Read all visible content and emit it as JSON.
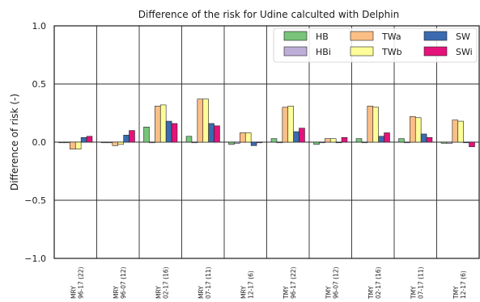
{
  "chart_data": {
    "type": "bar",
    "title": "Difference of the risk for Udine calculted with Delphin",
    "xlabel": "",
    "ylabel": "Difference of risk (-)",
    "ylim": [
      -1.0,
      1.0
    ],
    "yticks": [
      "−1.0",
      "−0.5",
      "0.0",
      "0.5",
      "1.0"
    ],
    "grid": true,
    "legend_position": "top-right",
    "categories": [
      [
        "MRY",
        "96-17 (22)"
      ],
      [
        "MRY",
        "96-07 (12)"
      ],
      [
        "MRY",
        "02-17 (16)"
      ],
      [
        "MRY",
        "07-17 (11)"
      ],
      [
        "MRY",
        "12-17 (6)"
      ],
      [
        "TMY",
        "96-17 (22)"
      ],
      [
        "TMY",
        "96-07 (12)"
      ],
      [
        "TMY",
        "02-17 (16)"
      ],
      [
        "TMY",
        "07-17 (11)"
      ],
      [
        "TMY",
        "12-17 (6)"
      ]
    ],
    "series": [
      {
        "name": "HB",
        "color": "#77c47a",
        "values": [
          0.0,
          0.0,
          0.13,
          0.05,
          -0.02,
          0.03,
          -0.02,
          0.03,
          0.03,
          -0.01
        ]
      },
      {
        "name": "HBi",
        "color": "#bdaed8",
        "values": [
          0.0,
          0.0,
          0.0,
          0.0,
          -0.01,
          0.0,
          0.0,
          0.0,
          0.0,
          -0.01
        ]
      },
      {
        "name": "TWa",
        "color": "#fbbf86",
        "values": [
          -0.06,
          -0.03,
          0.31,
          0.37,
          0.08,
          0.3,
          0.03,
          0.31,
          0.22,
          0.19
        ]
      },
      {
        "name": "TWb",
        "color": "#fdfd99",
        "values": [
          -0.06,
          -0.02,
          0.32,
          0.37,
          0.08,
          0.31,
          0.03,
          0.3,
          0.21,
          0.18
        ]
      },
      {
        "name": "SW",
        "color": "#3a6bb0",
        "values": [
          0.04,
          0.06,
          0.18,
          0.16,
          -0.03,
          0.09,
          0.0,
          0.05,
          0.07,
          0.0
        ]
      },
      {
        "name": "SWi",
        "color": "#e4127a",
        "values": [
          0.05,
          0.1,
          0.16,
          0.14,
          0.0,
          0.12,
          0.04,
          0.08,
          0.04,
          -0.04
        ]
      }
    ]
  }
}
